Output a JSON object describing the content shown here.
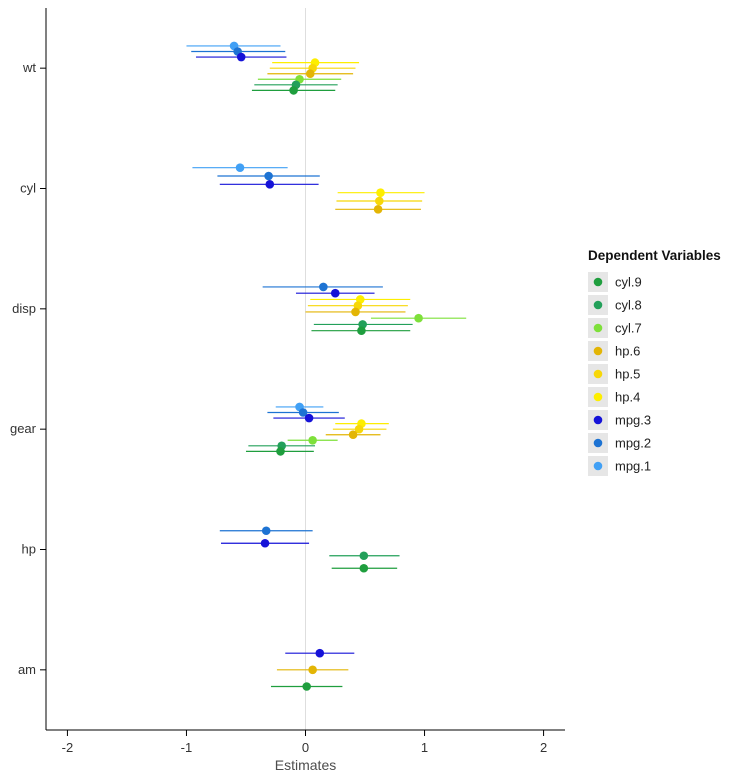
{
  "chart_data": {
    "type": "scatter",
    "subtype": "forest-coefficient-plot",
    "title": "",
    "xlabel": "Estimates",
    "ylabel": "",
    "xlim": [
      -2.18,
      2.18
    ],
    "x_ticks": [
      -2,
      -1,
      0,
      1,
      2
    ],
    "categories": [
      "wt",
      "cyl",
      "disp",
      "gear",
      "hp",
      "am"
    ],
    "grid": "none",
    "zero_line": true,
    "dodge_width": 50,
    "colors": {
      "zero_line": "#dedede",
      "axis": "#000000",
      "legend_key_bg": "#e6e6e6"
    },
    "legend": {
      "title": "Dependent Variables",
      "position": "right",
      "items": [
        {
          "name": "cyl.9",
          "color": "#1f9e3e"
        },
        {
          "name": "cyl.8",
          "color": "#23a05a"
        },
        {
          "name": "cyl.7",
          "color": "#7ee03a"
        },
        {
          "name": "hp.6",
          "color": "#e3b505"
        },
        {
          "name": "hp.5",
          "color": "#f7d708"
        },
        {
          "name": "hp.4",
          "color": "#fdee00"
        },
        {
          "name": "mpg.3",
          "color": "#1512d8"
        },
        {
          "name": "mpg.2",
          "color": "#1d73d3"
        },
        {
          "name": "mpg.1",
          "color": "#41a0f5"
        }
      ]
    },
    "series_order_top_to_bottom": [
      "mpg.1",
      "mpg.2",
      "mpg.3",
      "hp.4",
      "hp.5",
      "hp.6",
      "cyl.7",
      "cyl.8",
      "cyl.9"
    ],
    "points": [
      {
        "series": "mpg.1",
        "category": "wt",
        "estimate": -0.6,
        "ci_low": -1.0,
        "ci_high": -0.21
      },
      {
        "series": "mpg.2",
        "category": "wt",
        "estimate": -0.57,
        "ci_low": -0.96,
        "ci_high": -0.17
      },
      {
        "series": "mpg.3",
        "category": "wt",
        "estimate": -0.54,
        "ci_low": -0.92,
        "ci_high": -0.16
      },
      {
        "series": "hp.4",
        "category": "wt",
        "estimate": 0.08,
        "ci_low": -0.28,
        "ci_high": 0.45
      },
      {
        "series": "hp.5",
        "category": "wt",
        "estimate": 0.06,
        "ci_low": -0.3,
        "ci_high": 0.42
      },
      {
        "series": "hp.6",
        "category": "wt",
        "estimate": 0.04,
        "ci_low": -0.32,
        "ci_high": 0.4
      },
      {
        "series": "cyl.7",
        "category": "wt",
        "estimate": -0.05,
        "ci_low": -0.4,
        "ci_high": 0.3
      },
      {
        "series": "cyl.8",
        "category": "wt",
        "estimate": -0.08,
        "ci_low": -0.43,
        "ci_high": 0.27
      },
      {
        "series": "cyl.9",
        "category": "wt",
        "estimate": -0.1,
        "ci_low": -0.45,
        "ci_high": 0.25
      },
      {
        "series": "mpg.1",
        "category": "cyl",
        "estimate": -0.55,
        "ci_low": -0.95,
        "ci_high": -0.15
      },
      {
        "series": "mpg.2",
        "category": "cyl",
        "estimate": -0.31,
        "ci_low": -0.74,
        "ci_high": 0.12
      },
      {
        "series": "mpg.3",
        "category": "cyl",
        "estimate": -0.3,
        "ci_low": -0.72,
        "ci_high": 0.11
      },
      {
        "series": "hp.4",
        "category": "cyl",
        "estimate": 0.63,
        "ci_low": 0.27,
        "ci_high": 1.0
      },
      {
        "series": "hp.5",
        "category": "cyl",
        "estimate": 0.62,
        "ci_low": 0.26,
        "ci_high": 0.98
      },
      {
        "series": "hp.6",
        "category": "cyl",
        "estimate": 0.61,
        "ci_low": 0.25,
        "ci_high": 0.97
      },
      {
        "series": "mpg.2",
        "category": "disp",
        "estimate": 0.15,
        "ci_low": -0.36,
        "ci_high": 0.65
      },
      {
        "series": "mpg.3",
        "category": "disp",
        "estimate": 0.25,
        "ci_low": -0.08,
        "ci_high": 0.58
      },
      {
        "series": "hp.4",
        "category": "disp",
        "estimate": 0.46,
        "ci_low": 0.04,
        "ci_high": 0.88
      },
      {
        "series": "hp.5",
        "category": "disp",
        "estimate": 0.44,
        "ci_low": 0.02,
        "ci_high": 0.86
      },
      {
        "series": "hp.6",
        "category": "disp",
        "estimate": 0.42,
        "ci_low": 0.0,
        "ci_high": 0.84
      },
      {
        "series": "cyl.7",
        "category": "disp",
        "estimate": 0.95,
        "ci_low": 0.55,
        "ci_high": 1.35
      },
      {
        "series": "cyl.8",
        "category": "disp",
        "estimate": 0.48,
        "ci_low": 0.07,
        "ci_high": 0.9
      },
      {
        "series": "cyl.9",
        "category": "disp",
        "estimate": 0.47,
        "ci_low": 0.05,
        "ci_high": 0.88
      },
      {
        "series": "mpg.1",
        "category": "gear",
        "estimate": -0.05,
        "ci_low": -0.25,
        "ci_high": 0.15
      },
      {
        "series": "mpg.2",
        "category": "gear",
        "estimate": -0.02,
        "ci_low": -0.32,
        "ci_high": 0.28
      },
      {
        "series": "mpg.3",
        "category": "gear",
        "estimate": 0.03,
        "ci_low": -0.27,
        "ci_high": 0.33
      },
      {
        "series": "hp.4",
        "category": "gear",
        "estimate": 0.47,
        "ci_low": 0.25,
        "ci_high": 0.7
      },
      {
        "series": "hp.5",
        "category": "gear",
        "estimate": 0.45,
        "ci_low": 0.23,
        "ci_high": 0.68
      },
      {
        "series": "hp.6",
        "category": "gear",
        "estimate": 0.4,
        "ci_low": 0.17,
        "ci_high": 0.63
      },
      {
        "series": "cyl.7",
        "category": "gear",
        "estimate": 0.06,
        "ci_low": -0.15,
        "ci_high": 0.27
      },
      {
        "series": "cyl.8",
        "category": "gear",
        "estimate": -0.2,
        "ci_low": -0.48,
        "ci_high": 0.08
      },
      {
        "series": "cyl.9",
        "category": "gear",
        "estimate": -0.21,
        "ci_low": -0.5,
        "ci_high": 0.07
      },
      {
        "series": "mpg.2",
        "category": "hp",
        "estimate": -0.33,
        "ci_low": -0.72,
        "ci_high": 0.06
      },
      {
        "series": "mpg.3",
        "category": "hp",
        "estimate": -0.34,
        "ci_low": -0.71,
        "ci_high": 0.03
      },
      {
        "series": "cyl.8",
        "category": "hp",
        "estimate": 0.49,
        "ci_low": 0.2,
        "ci_high": 0.79
      },
      {
        "series": "cyl.9",
        "category": "hp",
        "estimate": 0.49,
        "ci_low": 0.22,
        "ci_high": 0.77
      },
      {
        "series": "mpg.3",
        "category": "am",
        "estimate": 0.12,
        "ci_low": -0.17,
        "ci_high": 0.41
      },
      {
        "series": "hp.6",
        "category": "am",
        "estimate": 0.06,
        "ci_low": -0.24,
        "ci_high": 0.36
      },
      {
        "series": "cyl.9",
        "category": "am",
        "estimate": 0.01,
        "ci_low": -0.29,
        "ci_high": 0.31
      }
    ]
  }
}
